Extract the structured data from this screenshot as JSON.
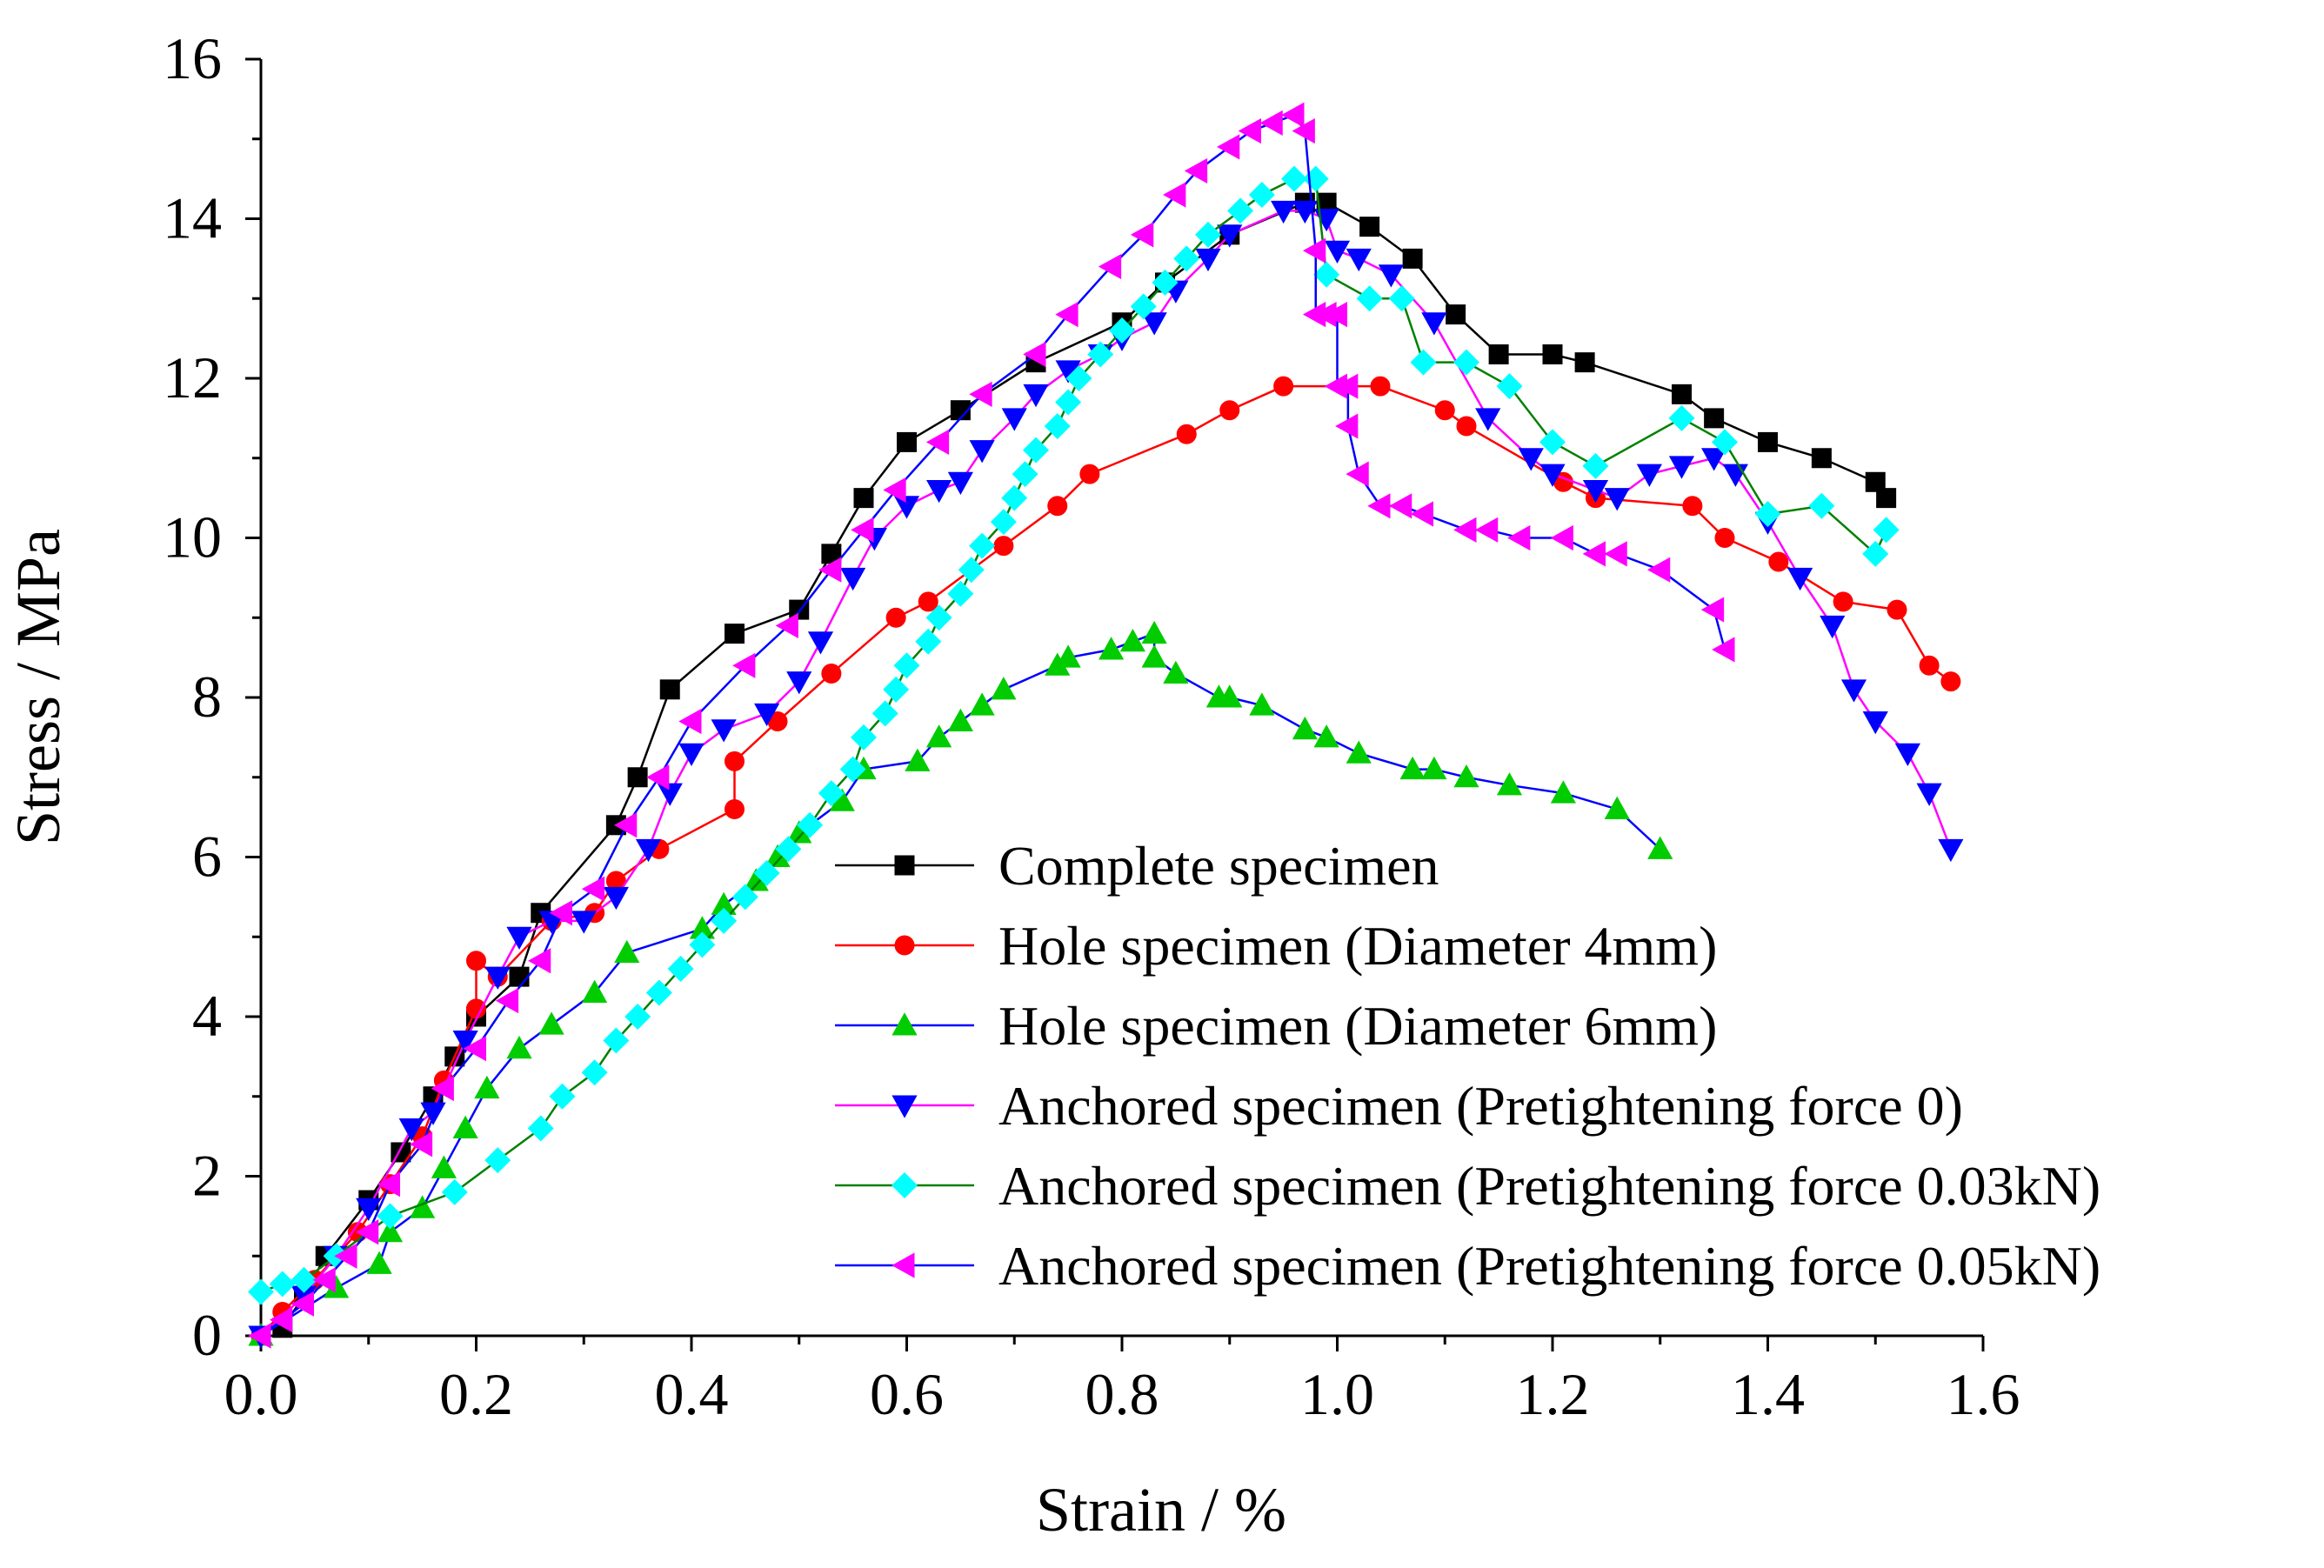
{
  "chart_data": {
    "type": "line",
    "title": "",
    "xlabel": "Strain / %",
    "ylabel": "Stress / MPa",
    "xlim": [
      0.0,
      1.6
    ],
    "ylim": [
      0,
      16
    ],
    "xticks": [
      "0.0",
      "0.2",
      "0.4",
      "0.6",
      "0.8",
      "1.0",
      "1.2",
      "1.4",
      "1.6"
    ],
    "yticks": [
      "0",
      "2",
      "4",
      "6",
      "8",
      "10",
      "12",
      "14",
      "16"
    ],
    "grid": false,
    "legend_position": "bottom-right",
    "series": [
      {
        "name": "Complete specimen",
        "line_color": "#000000",
        "marker_color": "#000000",
        "marker": "square",
        "points": [
          [
            0.02,
            0.1
          ],
          [
            0.04,
            0.5
          ],
          [
            0.06,
            1.0
          ],
          [
            0.1,
            1.7
          ],
          [
            0.13,
            2.3
          ],
          [
            0.16,
            3.0
          ],
          [
            0.18,
            3.5
          ],
          [
            0.2,
            4.0
          ],
          [
            0.24,
            4.5
          ],
          [
            0.26,
            5.3
          ],
          [
            0.33,
            6.4
          ],
          [
            0.35,
            7.0
          ],
          [
            0.38,
            8.1
          ],
          [
            0.44,
            8.8
          ],
          [
            0.5,
            9.1
          ],
          [
            0.53,
            9.8
          ],
          [
            0.56,
            10.5
          ],
          [
            0.6,
            11.2
          ],
          [
            0.65,
            11.6
          ],
          [
            0.72,
            12.2
          ],
          [
            0.8,
            12.7
          ],
          [
            0.84,
            13.2
          ],
          [
            0.9,
            13.8
          ],
          [
            0.97,
            14.2
          ],
          [
            0.99,
            14.2
          ],
          [
            1.03,
            13.9
          ],
          [
            1.07,
            13.5
          ],
          [
            1.11,
            12.8
          ],
          [
            1.15,
            12.3
          ],
          [
            1.2,
            12.3
          ],
          [
            1.23,
            12.2
          ],
          [
            1.32,
            11.8
          ],
          [
            1.35,
            11.5
          ],
          [
            1.4,
            11.2
          ],
          [
            1.45,
            11.0
          ],
          [
            1.5,
            10.7
          ],
          [
            1.51,
            10.5
          ]
        ]
      },
      {
        "name": "Hole specimen (Diameter 4mm)",
        "line_color": "#FF0000",
        "marker_color": "#FF0000",
        "marker": "circle",
        "points": [
          [
            0.0,
            0.0
          ],
          [
            0.02,
            0.3
          ],
          [
            0.05,
            0.7
          ],
          [
            0.09,
            1.3
          ],
          [
            0.12,
            1.9
          ],
          [
            0.15,
            2.5
          ],
          [
            0.17,
            3.2
          ],
          [
            0.2,
            4.1
          ],
          [
            0.2,
            4.7
          ],
          [
            0.22,
            4.5
          ],
          [
            0.27,
            5.2
          ],
          [
            0.31,
            5.3
          ],
          [
            0.33,
            5.7
          ],
          [
            0.37,
            6.1
          ],
          [
            0.44,
            6.6
          ],
          [
            0.44,
            7.2
          ],
          [
            0.48,
            7.7
          ],
          [
            0.53,
            8.3
          ],
          [
            0.59,
            9.0
          ],
          [
            0.62,
            9.2
          ],
          [
            0.69,
            9.9
          ],
          [
            0.74,
            10.4
          ],
          [
            0.77,
            10.8
          ],
          [
            0.86,
            11.3
          ],
          [
            0.9,
            11.6
          ],
          [
            0.95,
            11.9
          ],
          [
            1.04,
            11.9
          ],
          [
            1.1,
            11.6
          ],
          [
            1.12,
            11.4
          ],
          [
            1.21,
            10.7
          ],
          [
            1.24,
            10.5
          ],
          [
            1.33,
            10.4
          ],
          [
            1.36,
            10.0
          ],
          [
            1.41,
            9.7
          ],
          [
            1.47,
            9.2
          ],
          [
            1.52,
            9.1
          ],
          [
            1.55,
            8.4
          ],
          [
            1.57,
            8.2
          ]
        ]
      },
      {
        "name": "Hole specimen (Diameter 6mm)",
        "line_color": "#0000FF",
        "marker_color": "#00CC00",
        "marker": "triangle-up",
        "points": [
          [
            0.0,
            0.0
          ],
          [
            0.07,
            0.6
          ],
          [
            0.11,
            0.9
          ],
          [
            0.12,
            1.3
          ],
          [
            0.15,
            1.6
          ],
          [
            0.17,
            2.1
          ],
          [
            0.19,
            2.6
          ],
          [
            0.21,
            3.1
          ],
          [
            0.24,
            3.6
          ],
          [
            0.27,
            3.9
          ],
          [
            0.31,
            4.3
          ],
          [
            0.34,
            4.8
          ],
          [
            0.41,
            5.1
          ],
          [
            0.43,
            5.4
          ],
          [
            0.46,
            5.7
          ],
          [
            0.48,
            6.0
          ],
          [
            0.5,
            6.3
          ],
          [
            0.54,
            6.7
          ],
          [
            0.56,
            7.1
          ],
          [
            0.61,
            7.2
          ],
          [
            0.63,
            7.5
          ],
          [
            0.65,
            7.7
          ],
          [
            0.67,
            7.9
          ],
          [
            0.69,
            8.1
          ],
          [
            0.74,
            8.4
          ],
          [
            0.75,
            8.5
          ],
          [
            0.79,
            8.6
          ],
          [
            0.81,
            8.7
          ],
          [
            0.83,
            8.8
          ],
          [
            0.83,
            8.5
          ],
          [
            0.85,
            8.3
          ],
          [
            0.89,
            8.0
          ],
          [
            0.9,
            8.0
          ],
          [
            0.93,
            7.9
          ],
          [
            0.97,
            7.6
          ],
          [
            0.99,
            7.5
          ],
          [
            1.02,
            7.3
          ],
          [
            1.07,
            7.1
          ],
          [
            1.09,
            7.1
          ],
          [
            1.12,
            7.0
          ],
          [
            1.16,
            6.9
          ],
          [
            1.21,
            6.8
          ],
          [
            1.26,
            6.6
          ],
          [
            1.3,
            6.1
          ]
        ]
      },
      {
        "name": "Anchored specimen (Pretightening force 0)",
        "line_color": "#FF00FF",
        "marker_color": "#0000FF",
        "marker": "triangle-down",
        "points": [
          [
            0.0,
            0.0
          ],
          [
            0.04,
            0.5
          ],
          [
            0.07,
            1.0
          ],
          [
            0.1,
            1.6
          ],
          [
            0.14,
            2.6
          ],
          [
            0.16,
            2.8
          ],
          [
            0.19,
            3.7
          ],
          [
            0.22,
            4.5
          ],
          [
            0.24,
            5.0
          ],
          [
            0.27,
            5.2
          ],
          [
            0.3,
            5.2
          ],
          [
            0.33,
            5.5
          ],
          [
            0.36,
            6.1
          ],
          [
            0.38,
            6.8
          ],
          [
            0.4,
            7.3
          ],
          [
            0.43,
            7.6
          ],
          [
            0.47,
            7.8
          ],
          [
            0.5,
            8.2
          ],
          [
            0.52,
            8.7
          ],
          [
            0.55,
            9.5
          ],
          [
            0.57,
            10.0
          ],
          [
            0.6,
            10.4
          ],
          [
            0.63,
            10.6
          ],
          [
            0.65,
            10.7
          ],
          [
            0.67,
            11.1
          ],
          [
            0.7,
            11.5
          ],
          [
            0.72,
            11.8
          ],
          [
            0.75,
            12.1
          ],
          [
            0.78,
            12.3
          ],
          [
            0.8,
            12.5
          ],
          [
            0.83,
            12.7
          ],
          [
            0.85,
            13.1
          ],
          [
            0.88,
            13.5
          ],
          [
            0.9,
            13.8
          ],
          [
            0.95,
            14.1
          ],
          [
            0.97,
            14.1
          ],
          [
            0.99,
            14.0
          ],
          [
            1.0,
            13.6
          ],
          [
            1.02,
            13.5
          ],
          [
            1.05,
            13.3
          ],
          [
            1.09,
            12.7
          ],
          [
            1.14,
            11.5
          ],
          [
            1.18,
            11.0
          ],
          [
            1.2,
            10.8
          ],
          [
            1.24,
            10.6
          ],
          [
            1.26,
            10.5
          ],
          [
            1.29,
            10.8
          ],
          [
            1.32,
            10.9
          ],
          [
            1.35,
            11.0
          ],
          [
            1.37,
            10.8
          ],
          [
            1.4,
            10.2
          ],
          [
            1.43,
            9.5
          ],
          [
            1.46,
            8.9
          ],
          [
            1.48,
            8.1
          ],
          [
            1.5,
            7.7
          ],
          [
            1.53,
            7.3
          ],
          [
            1.55,
            6.8
          ],
          [
            1.57,
            6.1
          ]
        ]
      },
      {
        "name": "Anchored specimen (Pretightening force 0.03kN)",
        "line_color": "#008000",
        "marker_color": "#00FFFF",
        "marker": "diamond",
        "points": [
          [
            0.0,
            0.55
          ],
          [
            0.02,
            0.65
          ],
          [
            0.04,
            0.7
          ],
          [
            0.07,
            1.0
          ],
          [
            0.12,
            1.5
          ],
          [
            0.18,
            1.8
          ],
          [
            0.22,
            2.2
          ],
          [
            0.26,
            2.6
          ],
          [
            0.28,
            3.0
          ],
          [
            0.31,
            3.3
          ],
          [
            0.33,
            3.7
          ],
          [
            0.35,
            4.0
          ],
          [
            0.37,
            4.3
          ],
          [
            0.39,
            4.6
          ],
          [
            0.41,
            4.9
          ],
          [
            0.43,
            5.2
          ],
          [
            0.45,
            5.5
          ],
          [
            0.47,
            5.8
          ],
          [
            0.49,
            6.1
          ],
          [
            0.51,
            6.4
          ],
          [
            0.53,
            6.8
          ],
          [
            0.55,
            7.1
          ],
          [
            0.56,
            7.5
          ],
          [
            0.58,
            7.8
          ],
          [
            0.59,
            8.1
          ],
          [
            0.6,
            8.4
          ],
          [
            0.62,
            8.7
          ],
          [
            0.63,
            9.0
          ],
          [
            0.65,
            9.3
          ],
          [
            0.66,
            9.6
          ],
          [
            0.67,
            9.9
          ],
          [
            0.69,
            10.2
          ],
          [
            0.7,
            10.5
          ],
          [
            0.71,
            10.8
          ],
          [
            0.72,
            11.1
          ],
          [
            0.74,
            11.4
          ],
          [
            0.75,
            11.7
          ],
          [
            0.76,
            12.0
          ],
          [
            0.78,
            12.3
          ],
          [
            0.8,
            12.6
          ],
          [
            0.82,
            12.9
          ],
          [
            0.84,
            13.2
          ],
          [
            0.86,
            13.5
          ],
          [
            0.88,
            13.8
          ],
          [
            0.91,
            14.1
          ],
          [
            0.93,
            14.3
          ],
          [
            0.96,
            14.5
          ],
          [
            0.98,
            14.5
          ],
          [
            0.99,
            13.3
          ],
          [
            1.03,
            13.0
          ],
          [
            1.06,
            13.0
          ],
          [
            1.08,
            12.2
          ],
          [
            1.12,
            12.2
          ],
          [
            1.16,
            11.9
          ],
          [
            1.2,
            11.2
          ],
          [
            1.24,
            10.9
          ],
          [
            1.32,
            11.5
          ],
          [
            1.36,
            11.2
          ],
          [
            1.4,
            10.3
          ],
          [
            1.45,
            10.4
          ],
          [
            1.5,
            9.8
          ],
          [
            1.51,
            10.1
          ]
        ]
      },
      {
        "name": "Anchored specimen (Pretightening force 0.05kN)",
        "line_color": "#0000FF",
        "marker_color": "#FF00FF",
        "marker": "triangle-left",
        "points": [
          [
            0.0,
            0.0
          ],
          [
            0.02,
            0.2
          ],
          [
            0.04,
            0.4
          ],
          [
            0.06,
            0.7
          ],
          [
            0.08,
            1.0
          ],
          [
            0.1,
            1.3
          ],
          [
            0.12,
            1.9
          ],
          [
            0.15,
            2.4
          ],
          [
            0.17,
            3.1
          ],
          [
            0.2,
            3.6
          ],
          [
            0.23,
            4.2
          ],
          [
            0.26,
            4.7
          ],
          [
            0.28,
            5.3
          ],
          [
            0.31,
            5.6
          ],
          [
            0.34,
            6.4
          ],
          [
            0.37,
            7.0
          ],
          [
            0.4,
            7.7
          ],
          [
            0.45,
            8.4
          ],
          [
            0.49,
            8.9
          ],
          [
            0.53,
            9.6
          ],
          [
            0.56,
            10.1
          ],
          [
            0.59,
            10.6
          ],
          [
            0.63,
            11.2
          ],
          [
            0.67,
            11.8
          ],
          [
            0.72,
            12.3
          ],
          [
            0.75,
            12.8
          ],
          [
            0.79,
            13.4
          ],
          [
            0.82,
            13.8
          ],
          [
            0.85,
            14.3
          ],
          [
            0.87,
            14.6
          ],
          [
            0.9,
            14.9
          ],
          [
            0.92,
            15.1
          ],
          [
            0.94,
            15.2
          ],
          [
            0.96,
            15.3
          ],
          [
            0.97,
            15.1
          ],
          [
            0.98,
            13.6
          ],
          [
            0.98,
            12.8
          ],
          [
            0.99,
            12.8
          ],
          [
            1.0,
            12.8
          ],
          [
            1.0,
            11.9
          ],
          [
            1.01,
            11.9
          ],
          [
            1.01,
            11.4
          ],
          [
            1.02,
            10.8
          ],
          [
            1.04,
            10.4
          ],
          [
            1.06,
            10.4
          ],
          [
            1.08,
            10.3
          ],
          [
            1.12,
            10.1
          ],
          [
            1.14,
            10.1
          ],
          [
            1.17,
            10.0
          ],
          [
            1.21,
            10.0
          ],
          [
            1.24,
            9.8
          ],
          [
            1.26,
            9.8
          ],
          [
            1.3,
            9.6
          ],
          [
            1.35,
            9.1
          ],
          [
            1.36,
            8.6
          ]
        ]
      }
    ]
  }
}
